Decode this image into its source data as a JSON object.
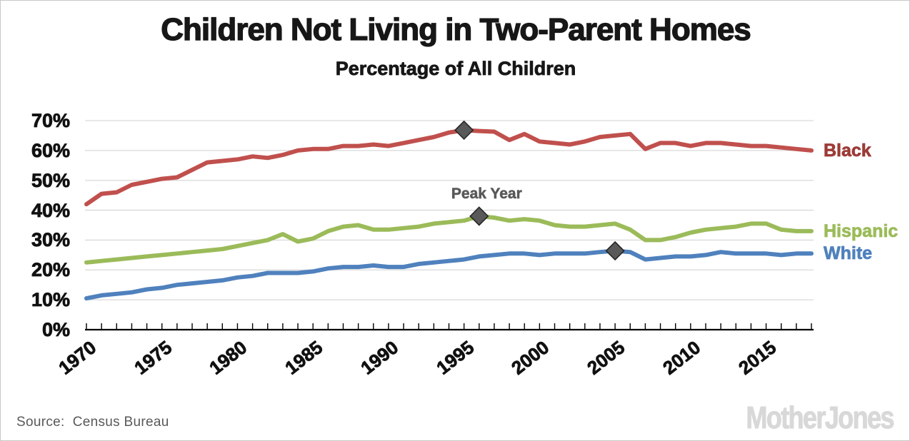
{
  "header": {
    "title": "Children Not Living in Two-Parent Homes",
    "subtitle": "Percentage of All Children"
  },
  "footer": {
    "source": "Source:  Census Bureau",
    "logo": "MotherJones"
  },
  "colors": {
    "background": "#ffffff",
    "gridline": "#d9d9d9",
    "axis": "#000000",
    "black_line": "#c0504d",
    "black_label": "#9c3b37",
    "hispanic_line": "#9bbb59",
    "hispanic_label": "#9bbb59",
    "white_line": "#4f81bd",
    "white_label": "#4f81bd",
    "peak_marker_fill": "#595959",
    "peak_marker_stroke": "#262626",
    "annotation_text": "#595959"
  },
  "chart_data": {
    "type": "line",
    "title": "Children Not Living in Two-Parent Homes",
    "subtitle": "Percentage of All Children",
    "xlim": [
      1970,
      2018
    ],
    "ylim": [
      0,
      70
    ],
    "grid": "horizontal",
    "x_step": 1,
    "x_tick_labels": [
      "1970",
      "1975",
      "1980",
      "1985",
      "1990",
      "1995",
      "2000",
      "2005",
      "2010",
      "2015"
    ],
    "y_tick_labels": [
      "0%",
      "10%",
      "20%",
      "30%",
      "40%",
      "50%",
      "60%",
      "70%"
    ],
    "legend_position": "right-of-line-ends",
    "peak_annotation": {
      "text": "Peak Year",
      "year": 1996.5,
      "value": 45.3
    },
    "series": [
      {
        "name": "Black",
        "color": "#c0504d",
        "label_color": "#9c3b37",
        "peak": {
          "year": 1995,
          "value": 66.8
        },
        "values": [
          42,
          45.5,
          46,
          48.5,
          49.5,
          50.5,
          51,
          53.5,
          56,
          56.5,
          57,
          58,
          57.5,
          58.5,
          60,
          60.5,
          60.5,
          61.5,
          61.5,
          62,
          61.5,
          62.5,
          63.5,
          64.5,
          66,
          66.8,
          66.5,
          66.3,
          63.5,
          65.5,
          63,
          62.5,
          62,
          63,
          64.5,
          65,
          65.5,
          60.5,
          62.5,
          62.5,
          61.5,
          62.5,
          62.5,
          62,
          61.5,
          61.5,
          61,
          60.5,
          60
        ]
      },
      {
        "name": "Hispanic",
        "color": "#9bbb59",
        "label_color": "#9bbb59",
        "peak": {
          "year": 1996,
          "value": 38
        },
        "values": [
          22.5,
          23,
          23.5,
          24,
          24.5,
          25,
          25.5,
          26,
          26.5,
          27,
          28,
          29,
          30,
          32,
          29.5,
          30.5,
          33,
          34.5,
          35,
          33.5,
          33.5,
          34,
          34.5,
          35.5,
          36,
          36.5,
          38,
          37.5,
          36.5,
          37,
          36.5,
          35,
          34.5,
          34.5,
          35,
          35.5,
          33.5,
          30,
          30,
          31,
          32.5,
          33.5,
          34,
          34.5,
          35.5,
          35.5,
          33.5,
          33,
          33
        ]
      },
      {
        "name": "White",
        "color": "#4f81bd",
        "label_color": "#4f81bd",
        "peak": {
          "year": 2005,
          "value": 26.4
        },
        "values": [
          10.5,
          11.5,
          12,
          12.5,
          13.5,
          14,
          15,
          15.5,
          16,
          16.5,
          17.5,
          18,
          19,
          19,
          19,
          19.5,
          20.5,
          21,
          21,
          21.5,
          21,
          21,
          22,
          22.5,
          23,
          23.5,
          24.5,
          25,
          25.5,
          25.5,
          25,
          25.5,
          25.5,
          25.5,
          26,
          26.4,
          26,
          23.5,
          24,
          24.5,
          24.5,
          25,
          26,
          25.5,
          25.5,
          25.5,
          25,
          25.5,
          25.5
        ]
      }
    ]
  }
}
